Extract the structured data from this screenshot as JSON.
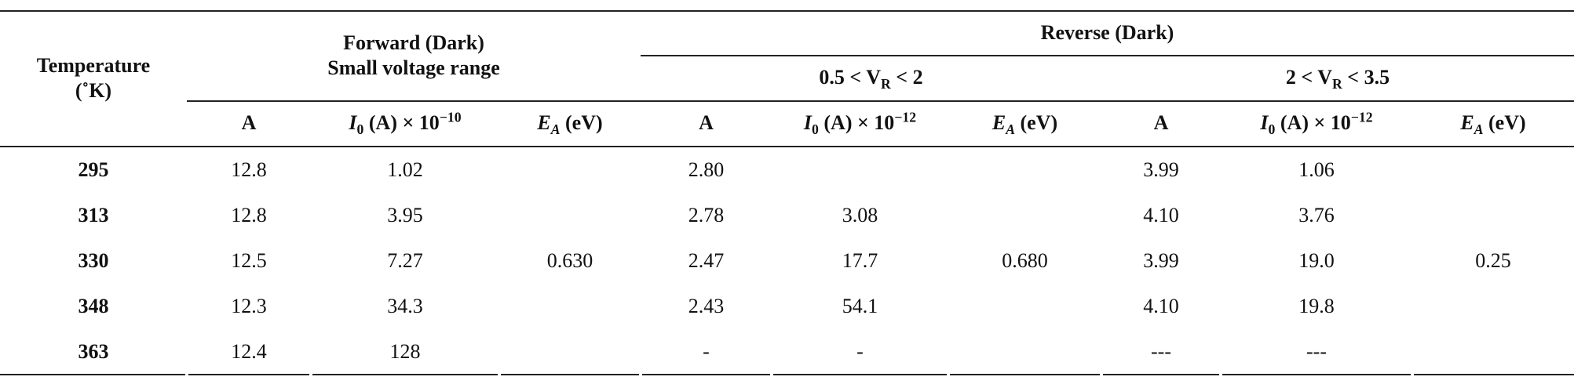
{
  "header": {
    "temperature": [
      "Temperature",
      "(˚K)"
    ],
    "forward": [
      "Forward (Dark)",
      "Small voltage range"
    ],
    "reverse": "Reverse (Dark)",
    "range1": [
      {
        "t": "0.5 < V"
      },
      {
        "t": "R",
        "s": "sub"
      },
      {
        "t": " < 2"
      }
    ],
    "range2": [
      {
        "t": "2 < V"
      },
      {
        "t": "R",
        "s": "sub"
      },
      {
        "t": " < 3.5"
      }
    ],
    "columns": [
      [
        {
          "t": "A"
        }
      ],
      [
        {
          "t": "I",
          "i": true
        },
        {
          "t": "0",
          "s": "sub"
        },
        {
          "t": " (A) × 10"
        },
        {
          "t": "−10",
          "s": "sup"
        }
      ],
      [
        {
          "t": "E",
          "i": true
        },
        {
          "t": "A",
          "s": "sub",
          "i": true
        },
        {
          "t": " (eV)"
        }
      ],
      [
        {
          "t": "A"
        }
      ],
      [
        {
          "t": "I",
          "i": true
        },
        {
          "t": "0",
          "s": "sub"
        },
        {
          "t": " (A) × 10"
        },
        {
          "t": "−12",
          "s": "sup"
        }
      ],
      [
        {
          "t": "E",
          "i": true
        },
        {
          "t": "A",
          "s": "sub",
          "i": true
        },
        {
          "t": " (eV)"
        }
      ],
      [
        {
          "t": "A"
        }
      ],
      [
        {
          "t": "I",
          "i": true
        },
        {
          "t": "0",
          "s": "sub"
        },
        {
          "t": " (A) × 10"
        },
        {
          "t": "−12",
          "s": "sup"
        }
      ],
      [
        {
          "t": "E",
          "i": true
        },
        {
          "t": "A",
          "s": "sub",
          "i": true
        },
        {
          "t": " (eV)"
        }
      ]
    ]
  },
  "rows": [
    {
      "temperature": "295",
      "values": [
        "12.8",
        "1.02",
        "2.80",
        null,
        "3.99",
        "1.06"
      ]
    },
    {
      "temperature": "313",
      "values": [
        "12.8",
        "3.95",
        "2.78",
        "3.08",
        "4.10",
        "3.76"
      ]
    },
    {
      "temperature": "330",
      "values": [
        "12.5",
        "7.27",
        "2.47",
        "17.7",
        "3.99",
        "19.0"
      ]
    },
    {
      "temperature": "348",
      "values": [
        "12.3",
        "34.3",
        "2.43",
        "54.1",
        "4.10",
        "19.8"
      ]
    },
    {
      "temperature": "363",
      "values": [
        "12.4",
        "128",
        "-",
        "-",
        "---",
        "---"
      ]
    }
  ],
  "activation_energies": [
    "0.630",
    "0.680",
    "0.25"
  ]
}
